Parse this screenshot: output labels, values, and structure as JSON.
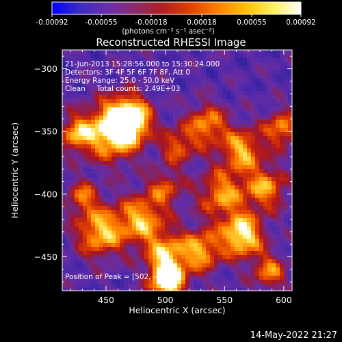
{
  "colorbar": {
    "ticks": [
      "-0.00092",
      "-0.00055",
      "-0.00018",
      "0.00018",
      "0.00055",
      "0.00092"
    ],
    "units": "(photons cm⁻² s⁻¹ asec⁻²)",
    "colors": [
      "#0000ff",
      "#3a2cc4",
      "#6a2fa8",
      "#8b2b6e",
      "#b01f1f",
      "#e04000",
      "#ff8000",
      "#ffc000",
      "#fff060",
      "#ffffff"
    ]
  },
  "info": {
    "line1": "21-Jun-2013 15:28:56.000 to 15:30:24.000",
    "line2": "Detectors: 3F 4F 5F 6F 7F 8F, Att 0",
    "line3": "Energy Range: 25.0 - 50.0 keV",
    "line4": "Clean     Total counts: 2.49E+03",
    "peak": "Position of Peak = [502, -469]"
  },
  "timestamp": "14-May-2022 21:27",
  "chart_data": {
    "type": "heatmap",
    "title": "Reconstructed RHESSI Image",
    "xlabel": "Heliocentric X (arcsec)",
    "ylabel": "Heliocentric Y (arcsec)",
    "xlim": [
      413,
      607
    ],
    "ylim": [
      -477,
      -285
    ],
    "xticks": [
      "450",
      "500",
      "550",
      "600"
    ],
    "yticks": [
      "-300",
      "-350",
      "-400",
      "-450"
    ],
    "colorbar_range": [
      -0.00092,
      0.00092
    ],
    "hotspots": [
      {
        "x": 455,
        "y": -350,
        "r": 16,
        "v": 0.75
      },
      {
        "x": 470,
        "y": -340,
        "r": 12,
        "v": 0.85
      },
      {
        "x": 425,
        "y": -352,
        "r": 10,
        "v": 0.55
      },
      {
        "x": 445,
        "y": -430,
        "r": 14,
        "v": 0.65
      },
      {
        "x": 480,
        "y": -420,
        "r": 14,
        "v": 0.6
      },
      {
        "x": 500,
        "y": -447,
        "r": 12,
        "v": 0.55
      },
      {
        "x": 502,
        "y": -469,
        "r": 10,
        "v": 1.0
      },
      {
        "x": 530,
        "y": -445,
        "r": 12,
        "v": 0.6
      },
      {
        "x": 565,
        "y": -433,
        "r": 12,
        "v": 0.8
      },
      {
        "x": 548,
        "y": -400,
        "r": 14,
        "v": 0.55
      },
      {
        "x": 535,
        "y": -345,
        "r": 12,
        "v": 0.55
      },
      {
        "x": 565,
        "y": -365,
        "r": 12,
        "v": 0.6
      },
      {
        "x": 598,
        "y": -348,
        "r": 10,
        "v": 0.55
      },
      {
        "x": 585,
        "y": -395,
        "r": 12,
        "v": 0.55
      },
      {
        "x": 510,
        "y": -362,
        "r": 10,
        "v": 0.45
      },
      {
        "x": 500,
        "y": -395,
        "r": 10,
        "v": 0.4
      },
      {
        "x": 588,
        "y": -462,
        "r": 10,
        "v": 0.5
      },
      {
        "x": 430,
        "y": -402,
        "r": 9,
        "v": 0.45
      }
    ]
  }
}
